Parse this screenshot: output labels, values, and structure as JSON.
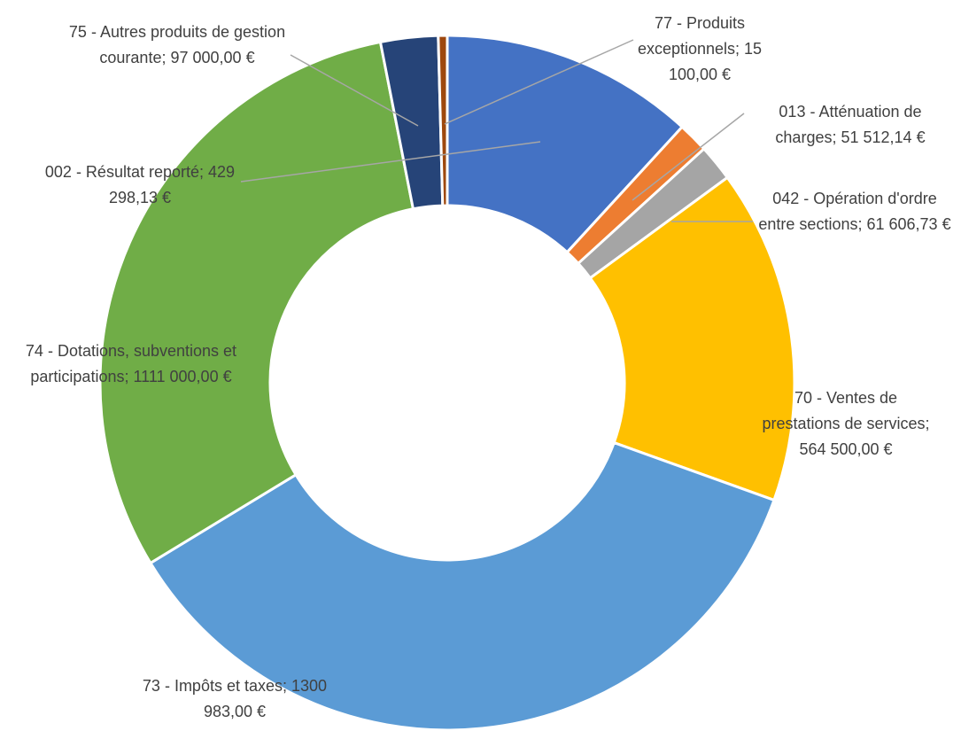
{
  "chart_data": {
    "type": "donut",
    "categories": [
      "002 - Résultat reporté;",
      "013 - Atténuation de charges;",
      "042 - Opération d'ordre entre sections;",
      "70 - Ventes de prestations de services;",
      "73 - Impôts et taxes;",
      "74 - Dotations, subventions et participations;",
      "75 - Autres produits de gestion courante;",
      "77 - Produits exceptionnels;"
    ],
    "values": [
      429298.13,
      51512.14,
      61606.73,
      564500,
      1300983,
      1111000,
      97000,
      15100
    ],
    "value_labels": [
      "429 298,13 €",
      "51 512,14 €",
      "61 606,73 €",
      "564 500,00 €",
      "1300 983,00 €",
      "1111 000,00 €",
      "97 000,00 €",
      "15 100,00 €"
    ],
    "colors": [
      "#4472c4",
      "#ed7d31",
      "#a5a5a5",
      "#ffc000",
      "#5b9bd5",
      "#70ad47",
      "#264478",
      "#9e480e"
    ]
  }
}
